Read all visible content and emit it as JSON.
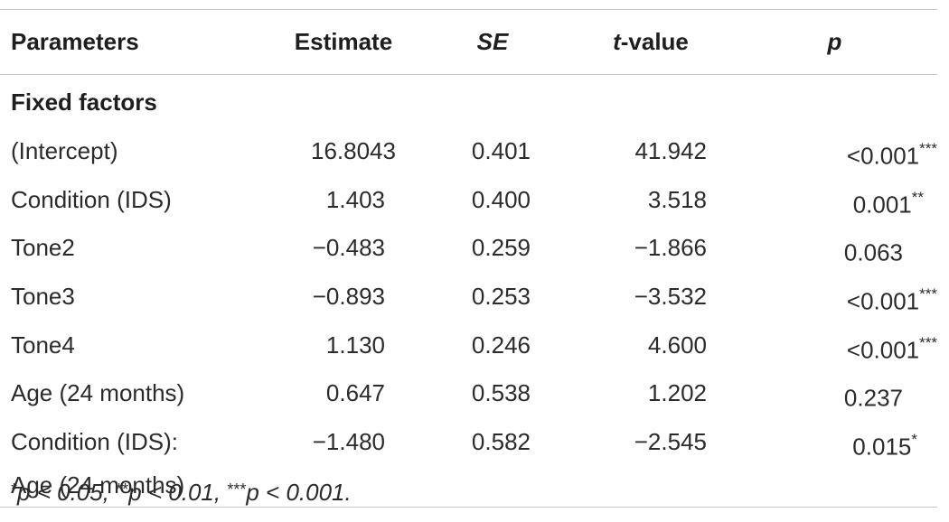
{
  "table": {
    "headers": {
      "parameters": "Parameters",
      "estimate": "Estimate",
      "se": "SE",
      "t_value_italic": "t",
      "t_value_rest": "-value",
      "p": "p"
    },
    "section_label": "Fixed factors",
    "rows": [
      {
        "parameter": "(Intercept)",
        "estimate": "16.8043",
        "se": "0.401",
        "t_value": "41.942",
        "p": "<0.001",
        "sig": "***"
      },
      {
        "parameter": "Condition (IDS)",
        "estimate": "1.403",
        "se": "0.400",
        "t_value": "3.518",
        "p": "0.001",
        "sig": "**"
      },
      {
        "parameter": "Tone2",
        "estimate": "−0.483",
        "se": "0.259",
        "t_value": "−1.866",
        "p": "0.063",
        "sig": ""
      },
      {
        "parameter": "Tone3",
        "estimate": "−0.893",
        "se": "0.253",
        "t_value": "−3.532",
        "p": "<0.001",
        "sig": "***"
      },
      {
        "parameter": "Tone4",
        "estimate": "1.130",
        "se": "0.246",
        "t_value": "4.600",
        "p": "<0.001",
        "sig": "***"
      },
      {
        "parameter": "Age (24 months)",
        "estimate": "0.647",
        "se": "0.538",
        "t_value": "1.202",
        "p": "0.237",
        "sig": ""
      },
      {
        "parameter_line1": "Condition (IDS):",
        "parameter_line2": "Age (24 months)",
        "estimate": "−1.480",
        "se": "0.582",
        "t_value": "−2.545",
        "p": "0.015",
        "sig": "*"
      }
    ]
  },
  "footnote": {
    "part1_sup": "*",
    "part1": "p < 0.05, ",
    "part2_sup": "**",
    "part2": "p < 0.01, ",
    "part3_sup": "***",
    "part3": "p < 0.001."
  }
}
